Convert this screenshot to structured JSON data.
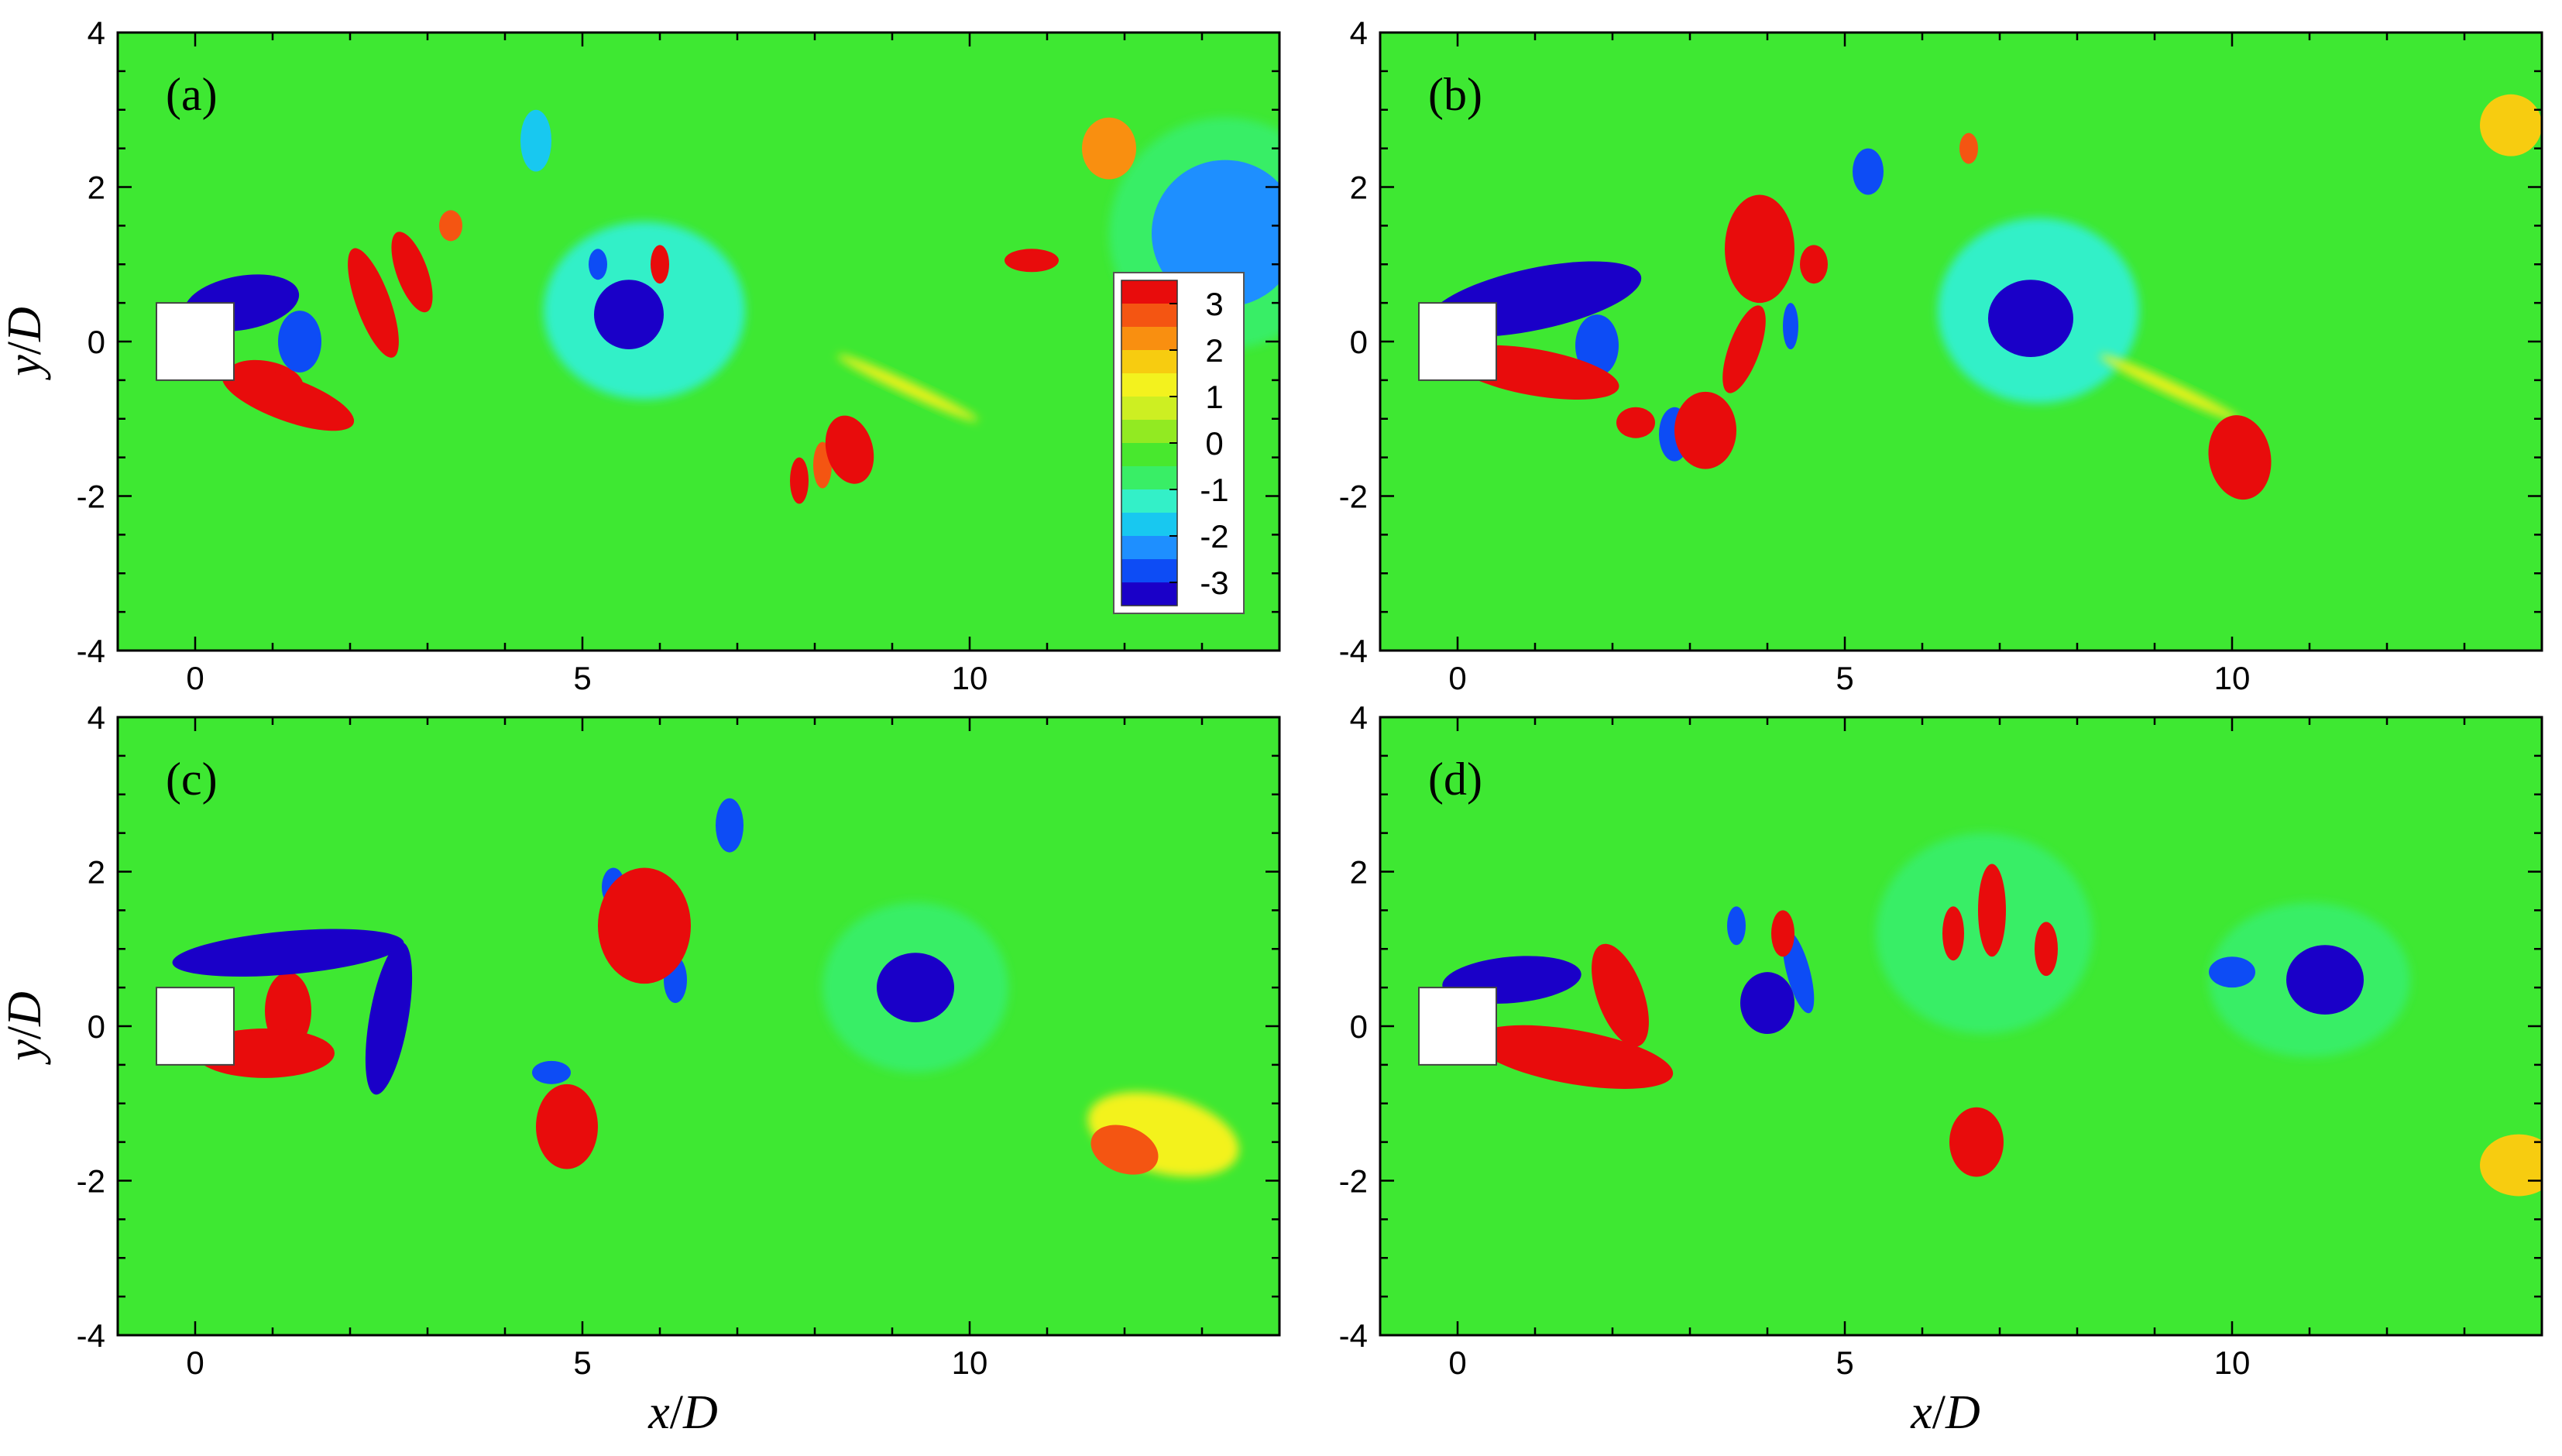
{
  "colormap": [
    "#1a00c8",
    "#0d4cf5",
    "#1e8fff",
    "#18c8f0",
    "#33f0c8",
    "#39ee66",
    "#48e82e",
    "#92ea22",
    "#cdef22",
    "#f3f21e",
    "#f7cc10",
    "#f98f10",
    "#f45512",
    "#e80c0c"
  ],
  "background_color": "#3ee832",
  "chart_data": [
    {
      "type": "heatmap",
      "panel": "(a)",
      "xlim": [
        -1,
        14
      ],
      "ylim": [
        -4,
        4
      ],
      "x_ticks": [
        "0",
        "5",
        "10"
      ],
      "y_ticks": [
        "-4",
        "-2",
        "0",
        "2",
        "4"
      ],
      "xlabel": "",
      "ylabel": "y/D",
      "features": [
        {
          "x": 1.2,
          "y": -0.75,
          "rx": 0.9,
          "ry": 0.28,
          "rot": -20,
          "v": 3.2
        },
        {
          "x": 0.9,
          "y": -0.5,
          "rx": 0.5,
          "ry": 0.25,
          "rot": -10,
          "v": 3.0
        },
        {
          "x": 2.3,
          "y": 0.5,
          "rx": 0.22,
          "ry": 0.75,
          "rot": 20,
          "v": 3.2
        },
        {
          "x": 2.8,
          "y": 0.9,
          "rx": 0.2,
          "ry": 0.55,
          "rot": 20,
          "v": 3.0
        },
        {
          "x": 3.3,
          "y": 1.5,
          "rx": 0.15,
          "ry": 0.2,
          "rot": 0,
          "v": 2.6
        },
        {
          "x": 0.6,
          "y": 0.5,
          "rx": 0.75,
          "ry": 0.35,
          "rot": 10,
          "v": -3.2
        },
        {
          "x": 1.35,
          "y": 0.0,
          "rx": 0.28,
          "ry": 0.4,
          "rot": 0,
          "v": -3.0
        },
        {
          "x": 5.6,
          "y": 0.35,
          "rx": 0.45,
          "ry": 0.45,
          "rot": 0,
          "v": -3.2
        },
        {
          "x": 5.8,
          "y": 0.4,
          "rx": 1.3,
          "ry": 1.15,
          "rot": 0,
          "v": -1.1
        },
        {
          "x": 6.0,
          "y": 1.0,
          "rx": 0.12,
          "ry": 0.25,
          "rot": 0,
          "v": 3.0
        },
        {
          "x": 5.2,
          "y": 1.0,
          "rx": 0.12,
          "ry": 0.2,
          "rot": 0,
          "v": -3.0
        },
        {
          "x": 4.4,
          "y": 2.6,
          "rx": 0.2,
          "ry": 0.4,
          "rot": 0,
          "v": -2.0
        },
        {
          "x": 8.45,
          "y": -1.4,
          "rx": 0.3,
          "ry": 0.45,
          "rot": 15,
          "v": 3.3
        },
        {
          "x": 7.8,
          "y": -1.8,
          "rx": 0.12,
          "ry": 0.3,
          "rot": 0,
          "v": 3.0
        },
        {
          "x": 8.1,
          "y": -1.6,
          "rx": 0.12,
          "ry": 0.3,
          "rot": 0,
          "v": 2.9
        },
        {
          "x": 9.2,
          "y": -0.6,
          "rx": 1.0,
          "ry": 0.08,
          "rot": -25,
          "v": 1.4
        },
        {
          "x": 10.8,
          "y": 1.05,
          "rx": 0.35,
          "ry": 0.15,
          "rot": 0,
          "v": 3.2
        },
        {
          "x": 11.8,
          "y": 2.5,
          "rx": 0.35,
          "ry": 0.4,
          "rot": 0,
          "v": 2.4
        },
        {
          "x": 13.3,
          "y": 1.4,
          "rx": 0.95,
          "ry": 0.95,
          "rot": 0,
          "v": -2.1
        },
        {
          "x": 13.3,
          "y": 1.4,
          "rx": 1.5,
          "ry": 1.5,
          "rot": 0,
          "v": -1.0
        }
      ]
    },
    {
      "type": "heatmap",
      "panel": "(b)",
      "xlim": [
        -1,
        14
      ],
      "ylim": [
        -4,
        4
      ],
      "x_ticks": [
        "0",
        "5",
        "10"
      ],
      "y_ticks": [
        "-4",
        "-2",
        "0",
        "2",
        "4"
      ],
      "xlabel": "",
      "ylabel": "",
      "features": [
        {
          "x": 1.0,
          "y": 0.55,
          "rx": 1.4,
          "ry": 0.4,
          "rot": 12,
          "v": -3.2
        },
        {
          "x": 1.8,
          "y": -0.05,
          "rx": 0.28,
          "ry": 0.4,
          "rot": 0,
          "v": -3.0
        },
        {
          "x": 1.0,
          "y": -0.4,
          "rx": 1.1,
          "ry": 0.3,
          "rot": -10,
          "v": 3.2
        },
        {
          "x": 2.3,
          "y": -1.05,
          "rx": 0.25,
          "ry": 0.2,
          "rot": 0,
          "v": 3.0
        },
        {
          "x": 3.2,
          "y": -1.15,
          "rx": 0.4,
          "ry": 0.5,
          "rot": 0,
          "v": 3.2
        },
        {
          "x": 2.8,
          "y": -1.2,
          "rx": 0.2,
          "ry": 0.35,
          "rot": 0,
          "v": -3.0
        },
        {
          "x": 3.9,
          "y": 1.2,
          "rx": 0.45,
          "ry": 0.7,
          "rot": 0,
          "v": 3.2
        },
        {
          "x": 4.6,
          "y": 1.0,
          "rx": 0.18,
          "ry": 0.25,
          "rot": 0,
          "v": 3.0
        },
        {
          "x": 3.7,
          "y": -0.1,
          "rx": 0.2,
          "ry": 0.6,
          "rot": -20,
          "v": 3.0
        },
        {
          "x": 4.3,
          "y": 0.2,
          "rx": 0.1,
          "ry": 0.3,
          "rot": 0,
          "v": -3.0
        },
        {
          "x": 7.4,
          "y": 0.3,
          "rx": 0.55,
          "ry": 0.5,
          "rot": 0,
          "v": -3.2
        },
        {
          "x": 7.5,
          "y": 0.4,
          "rx": 1.3,
          "ry": 1.2,
          "rot": 0,
          "v": -1.1
        },
        {
          "x": 5.3,
          "y": 2.2,
          "rx": 0.2,
          "ry": 0.3,
          "rot": 0,
          "v": -2.8
        },
        {
          "x": 6.6,
          "y": 2.5,
          "rx": 0.12,
          "ry": 0.2,
          "rot": 0,
          "v": 2.5
        },
        {
          "x": 10.1,
          "y": -1.5,
          "rx": 0.4,
          "ry": 0.55,
          "rot": 10,
          "v": 3.3
        },
        {
          "x": 9.2,
          "y": -0.6,
          "rx": 1.0,
          "ry": 0.08,
          "rot": -25,
          "v": 1.4
        },
        {
          "x": 13.6,
          "y": 2.8,
          "rx": 0.4,
          "ry": 0.4,
          "rot": 0,
          "v": 1.8
        }
      ]
    },
    {
      "type": "heatmap",
      "panel": "(c)",
      "xlim": [
        -1,
        14
      ],
      "ylim": [
        -4,
        4
      ],
      "x_ticks": [
        "0",
        "5",
        "10"
      ],
      "y_ticks": [
        "-4",
        "-2",
        "0",
        "2",
        "4"
      ],
      "xlabel": "x/D",
      "ylabel": "y/D",
      "features": [
        {
          "x": 1.2,
          "y": 0.95,
          "rx": 1.5,
          "ry": 0.28,
          "rot": 5,
          "v": -3.2
        },
        {
          "x": 2.5,
          "y": 0.1,
          "rx": 0.25,
          "ry": 1.0,
          "rot": -10,
          "v": -3.2
        },
        {
          "x": 0.9,
          "y": -0.35,
          "rx": 0.9,
          "ry": 0.32,
          "rot": 0,
          "v": 3.2
        },
        {
          "x": 1.2,
          "y": 0.2,
          "rx": 0.3,
          "ry": 0.5,
          "rot": 0,
          "v": 3.0
        },
        {
          "x": 5.8,
          "y": 1.3,
          "rx": 0.6,
          "ry": 0.75,
          "rot": 0,
          "v": 3.2
        },
        {
          "x": 5.4,
          "y": 1.8,
          "rx": 0.15,
          "ry": 0.25,
          "rot": 0,
          "v": -2.8
        },
        {
          "x": 6.2,
          "y": 0.6,
          "rx": 0.15,
          "ry": 0.3,
          "rot": 0,
          "v": -2.8
        },
        {
          "x": 4.8,
          "y": -1.3,
          "rx": 0.4,
          "ry": 0.55,
          "rot": 0,
          "v": 3.3
        },
        {
          "x": 4.6,
          "y": -0.6,
          "rx": 0.25,
          "ry": 0.15,
          "rot": 0,
          "v": -3.0
        },
        {
          "x": 6.9,
          "y": 2.6,
          "rx": 0.18,
          "ry": 0.35,
          "rot": 0,
          "v": -3.0
        },
        {
          "x": 9.3,
          "y": 0.5,
          "rx": 0.5,
          "ry": 0.45,
          "rot": 0,
          "v": -3.2
        },
        {
          "x": 9.3,
          "y": 0.5,
          "rx": 1.2,
          "ry": 1.1,
          "rot": 0,
          "v": -1.0
        },
        {
          "x": 12.0,
          "y": -1.6,
          "rx": 0.45,
          "ry": 0.3,
          "rot": -20,
          "v": 2.9
        },
        {
          "x": 12.5,
          "y": -1.4,
          "rx": 1.0,
          "ry": 0.5,
          "rot": -15,
          "v": 1.4
        }
      ]
    },
    {
      "type": "heatmap",
      "panel": "(d)",
      "xlim": [
        -1,
        14
      ],
      "ylim": [
        -4,
        4
      ],
      "x_ticks": [
        "0",
        "5",
        "10"
      ],
      "y_ticks": [
        "-4",
        "-2",
        "0",
        "2",
        "4"
      ],
      "xlabel": "x/D",
      "ylabel": "",
      "features": [
        {
          "x": 0.7,
          "y": 0.6,
          "rx": 0.9,
          "ry": 0.3,
          "rot": 5,
          "v": -3.2
        },
        {
          "x": 1.5,
          "y": -0.4,
          "rx": 1.3,
          "ry": 0.35,
          "rot": -10,
          "v": 3.2
        },
        {
          "x": 2.1,
          "y": 0.4,
          "rx": 0.3,
          "ry": 0.7,
          "rot": 20,
          "v": 3.2
        },
        {
          "x": 4.0,
          "y": 0.3,
          "rx": 0.35,
          "ry": 0.4,
          "rot": 0,
          "v": -3.2
        },
        {
          "x": 4.4,
          "y": 0.7,
          "rx": 0.15,
          "ry": 0.55,
          "rot": 15,
          "v": -3.0
        },
        {
          "x": 4.2,
          "y": 1.2,
          "rx": 0.15,
          "ry": 0.3,
          "rot": 0,
          "v": 3.0
        },
        {
          "x": 3.6,
          "y": 1.3,
          "rx": 0.12,
          "ry": 0.25,
          "rot": 0,
          "v": -3.0
        },
        {
          "x": 6.9,
          "y": 1.5,
          "rx": 0.18,
          "ry": 0.6,
          "rot": 0,
          "v": 3.2
        },
        {
          "x": 6.4,
          "y": 1.2,
          "rx": 0.14,
          "ry": 0.35,
          "rot": 0,
          "v": 3.0
        },
        {
          "x": 7.6,
          "y": 1.0,
          "rx": 0.15,
          "ry": 0.35,
          "rot": 0,
          "v": 3.0
        },
        {
          "x": 6.8,
          "y": 1.2,
          "rx": 1.4,
          "ry": 1.3,
          "rot": 0,
          "v": -1.0
        },
        {
          "x": 6.7,
          "y": -1.5,
          "rx": 0.35,
          "ry": 0.45,
          "rot": 0,
          "v": 3.3
        },
        {
          "x": 11.2,
          "y": 0.6,
          "rx": 0.5,
          "ry": 0.45,
          "rot": 0,
          "v": -3.2
        },
        {
          "x": 10.0,
          "y": 0.7,
          "rx": 0.3,
          "ry": 0.2,
          "rot": 0,
          "v": -2.8
        },
        {
          "x": 11.0,
          "y": 0.6,
          "rx": 1.3,
          "ry": 1.0,
          "rot": 0,
          "v": -1.0
        },
        {
          "x": 13.7,
          "y": -1.8,
          "rx": 0.5,
          "ry": 0.4,
          "rot": 0,
          "v": 1.8
        }
      ]
    }
  ],
  "colorbar": {
    "ticks": [
      "3",
      "2",
      "1",
      "0",
      "-1",
      "-2",
      "-3"
    ],
    "values": [
      3,
      2,
      1,
      0,
      -1,
      -2,
      -3
    ],
    "range": [
      -3.5,
      3.5
    ]
  }
}
